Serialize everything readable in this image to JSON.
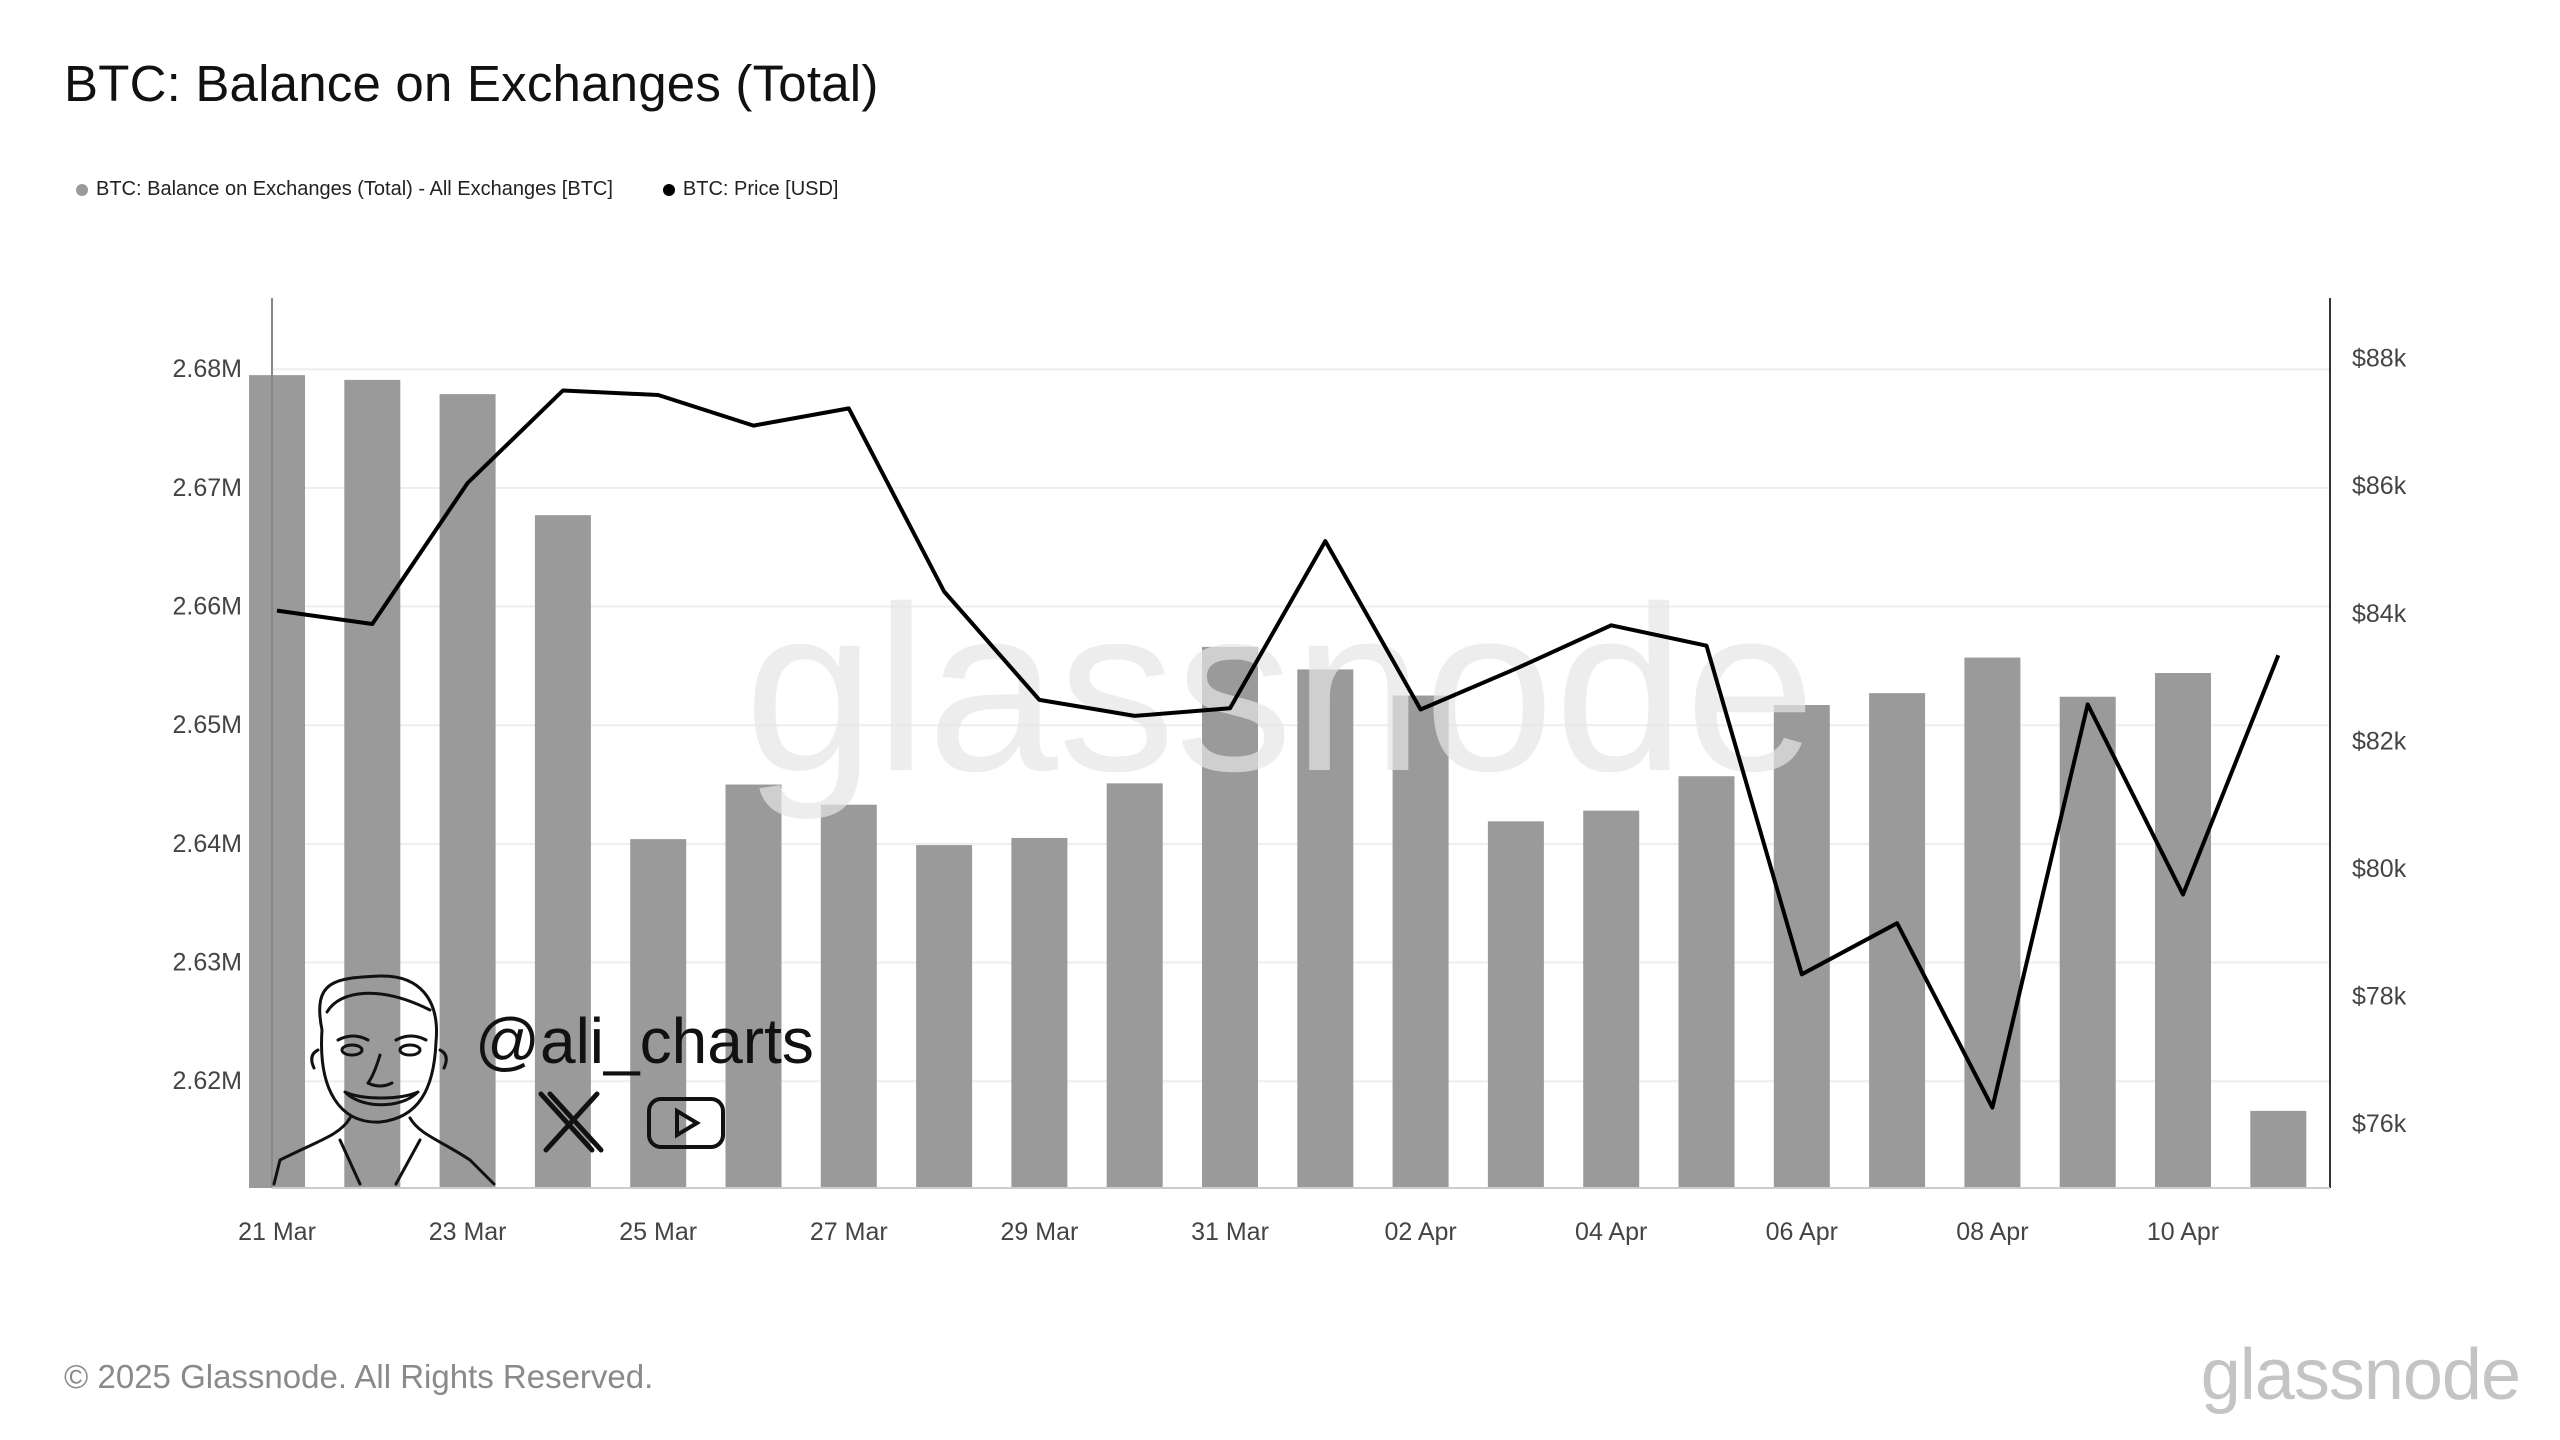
{
  "title": "BTC: Balance on Exchanges (Total)",
  "legend": [
    {
      "label": "BTC: Balance on Exchanges (Total) - All Exchanges [BTC]",
      "color": "#9a9a9a"
    },
    {
      "label": "BTC: Price [USD]",
      "color": "#000000"
    }
  ],
  "watermark": "glassnode",
  "handle": "@ali_charts",
  "footer": {
    "copyright": "© 2025 Glassnode. All Rights Reserved.",
    "logo": "glassnode"
  },
  "icons": [
    "caricature-avatar-icon",
    "x-logo-icon",
    "youtube-icon"
  ],
  "chart_data": {
    "type": "bar",
    "x": [
      "21 Mar",
      "22 Mar",
      "23 Mar",
      "24 Mar",
      "25 Mar",
      "26 Mar",
      "27 Mar",
      "28 Mar",
      "29 Mar",
      "30 Mar",
      "31 Mar",
      "01 Apr",
      "02 Apr",
      "03 Apr",
      "04 Apr",
      "05 Apr",
      "06 Apr",
      "07 Apr",
      "08 Apr",
      "09 Apr",
      "10 Apr",
      "11 Apr"
    ],
    "x_tick_labels": [
      "21 Mar",
      "23 Mar",
      "25 Mar",
      "27 Mar",
      "29 Mar",
      "31 Mar",
      "02 Apr",
      "04 Apr",
      "06 Apr",
      "08 Apr",
      "10 Apr"
    ],
    "series": [
      {
        "name": "BTC: Balance on Exchanges (Total) - All Exchanges [BTC]",
        "type": "bar",
        "axis": "left",
        "color": "#9a9a9a",
        "values": [
          2679500,
          2679100,
          2677900,
          2667700,
          2640400,
          2645000,
          2643300,
          2639900,
          2640500,
          2645100,
          2656600,
          2654700,
          2652500,
          2641900,
          2642800,
          2645700,
          2651700,
          2652700,
          2655700,
          2652400,
          2654400,
          2617500
        ]
      },
      {
        "name": "BTC: Price [USD]",
        "type": "line",
        "axis": "right",
        "color": "#000000",
        "values": [
          84050,
          83840,
          86050,
          87500,
          87430,
          86950,
          87220,
          84350,
          82650,
          82400,
          82520,
          85140,
          82500,
          83140,
          83820,
          83500,
          78350,
          79150,
          76260,
          82580,
          79600,
          83350
        ]
      }
    ],
    "y_left": {
      "ylim": [
        2611000,
        2686000
      ],
      "ticks": [
        2620000,
        2630000,
        2640000,
        2650000,
        2660000,
        2670000,
        2680000
      ],
      "tick_labels": [
        "2.62M",
        "2.63M",
        "2.64M",
        "2.65M",
        "2.66M",
        "2.67M",
        "2.68M"
      ]
    },
    "y_right": {
      "ylim": [
        75000,
        88950
      ],
      "ticks": [
        76000,
        78000,
        80000,
        82000,
        84000,
        86000,
        88000
      ],
      "tick_labels": [
        "$76k",
        "$78k",
        "$80k",
        "$82k",
        "$84k",
        "$86k",
        "$88k"
      ]
    },
    "grid": true,
    "legend_position": "top-left"
  }
}
